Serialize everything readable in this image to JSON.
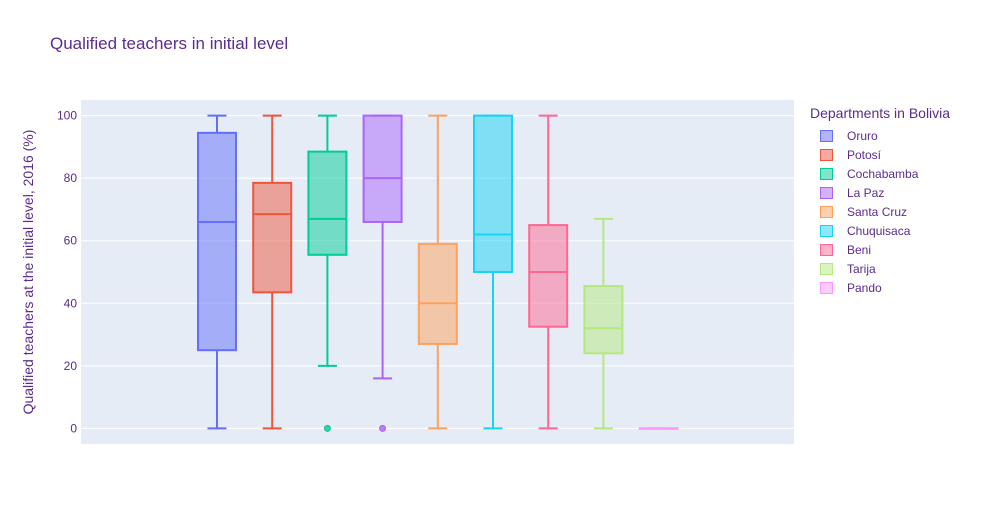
{
  "chart_data": {
    "type": "box",
    "title": "Qualified teachers in initial level",
    "xlabel": "",
    "ylabel": "Qualified teachers at the initial level, 2016 (%)",
    "ylim": [
      -5,
      105
    ],
    "yticks": [
      0,
      20,
      40,
      60,
      80,
      100
    ],
    "legend_title": "Departments in Bolivia",
    "legend_position": "top-right",
    "series": [
      {
        "name": "Oruro",
        "color": "#636efa",
        "min": 0,
        "q1": 25,
        "median": 66,
        "q3": 94.5,
        "max": 100,
        "outliers": []
      },
      {
        "name": "Potosí",
        "color": "#ef553b",
        "min": 0,
        "q1": 43.5,
        "median": 68.5,
        "q3": 78.5,
        "max": 100,
        "outliers": []
      },
      {
        "name": "Cochabamba",
        "color": "#00cc96",
        "min": 20,
        "q1": 55.5,
        "median": 67,
        "q3": 88.5,
        "max": 100,
        "outliers": [
          0
        ]
      },
      {
        "name": "La Paz",
        "color": "#ab63fa",
        "min": 16,
        "q1": 66,
        "median": 80,
        "q3": 100,
        "max": 100,
        "outliers": [
          0
        ]
      },
      {
        "name": "Santa Cruz",
        "color": "#ffa15a",
        "min": 0,
        "q1": 27,
        "median": 40,
        "q3": 59,
        "max": 100,
        "outliers": []
      },
      {
        "name": "Chuquisaca",
        "color": "#19d3f3",
        "min": 0,
        "q1": 50,
        "median": 62,
        "q3": 100,
        "max": 100,
        "outliers": []
      },
      {
        "name": "Beni",
        "color": "#ff6692",
        "min": 0,
        "q1": 32.5,
        "median": 50,
        "q3": 65,
        "max": 100,
        "outliers": []
      },
      {
        "name": "Tarija",
        "color": "#b6e880",
        "min": 0,
        "q1": 24,
        "median": 32,
        "q3": 45.5,
        "max": 67,
        "outliers": []
      },
      {
        "name": "Pando",
        "color": "#ff97ff",
        "min": 0,
        "q1": 0,
        "median": 0,
        "q3": 0,
        "max": 0,
        "outliers": []
      }
    ]
  }
}
